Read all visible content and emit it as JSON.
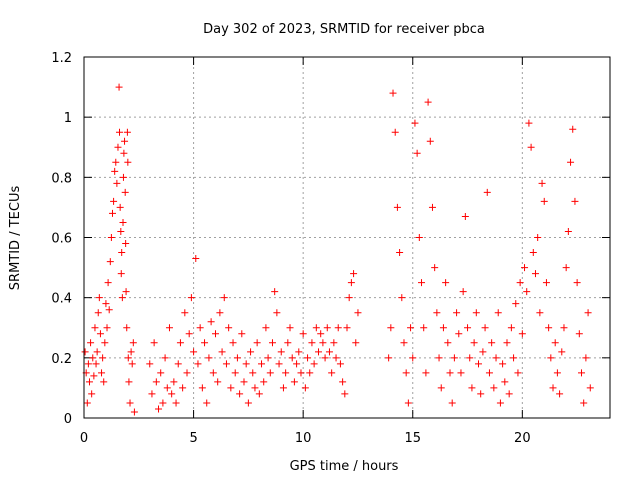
{
  "chart_data": {
    "type": "scatter",
    "title": "Day 302 of 2023, SRMTID for receiver pbca",
    "xlabel": "GPS time / hours",
    "ylabel": "SRMTID / TECUs",
    "xlim": [
      0,
      24
    ],
    "ylim": [
      0,
      1.2
    ],
    "x_ticks": [
      0,
      5,
      10,
      15,
      20
    ],
    "x_tick_labels": [
      "0",
      "5",
      "10",
      "15",
      "20"
    ],
    "y_ticks": [
      0,
      0.2,
      0.4,
      0.6,
      0.8,
      1.0,
      1.2
    ],
    "y_tick_labels": [
      "0",
      "0.2",
      "0.4",
      "0.6",
      "0.8",
      "1",
      "1.2"
    ],
    "grid": true,
    "marker": "+",
    "series": [
      {
        "name": "SRMTID",
        "color": "#ff0000",
        "x": [
          0.05,
          0.1,
          0.15,
          0.2,
          0.25,
          0.3,
          0.35,
          0.4,
          0.45,
          0.5,
          0.55,
          0.6,
          0.65,
          0.7,
          0.75,
          0.8,
          0.85,
          0.9,
          0.95,
          1.0,
          1.05,
          1.1,
          1.15,
          1.2,
          1.25,
          1.3,
          1.35,
          1.4,
          1.45,
          1.5,
          1.55,
          1.6,
          1.62,
          1.65,
          1.68,
          1.7,
          1.72,
          1.75,
          1.78,
          1.8,
          1.82,
          1.85,
          1.88,
          1.9,
          1.92,
          1.95,
          1.98,
          2.0,
          2.02,
          2.05,
          2.1,
          2.15,
          2.2,
          2.25,
          2.3,
          3.0,
          3.1,
          3.2,
          3.3,
          3.4,
          3.5,
          3.6,
          3.7,
          3.8,
          3.9,
          4.0,
          4.1,
          4.2,
          4.3,
          4.4,
          4.5,
          4.6,
          4.7,
          4.8,
          4.9,
          5.0,
          5.1,
          5.2,
          5.3,
          5.4,
          5.5,
          5.6,
          5.7,
          5.8,
          5.9,
          6.0,
          6.1,
          6.2,
          6.3,
          6.4,
          6.5,
          6.6,
          6.7,
          6.8,
          6.9,
          7.0,
          7.1,
          7.2,
          7.3,
          7.4,
          7.5,
          7.6,
          7.7,
          7.8,
          7.9,
          8.0,
          8.1,
          8.2,
          8.3,
          8.4,
          8.5,
          8.6,
          8.7,
          8.8,
          8.9,
          9.0,
          9.1,
          9.2,
          9.3,
          9.4,
          9.5,
          9.6,
          9.7,
          9.8,
          9.9,
          10.0,
          10.1,
          10.2,
          10.3,
          10.4,
          10.5,
          10.6,
          10.7,
          10.8,
          10.9,
          11.0,
          11.1,
          11.2,
          11.3,
          11.4,
          11.5,
          11.6,
          11.7,
          11.8,
          11.9,
          12.0,
          12.1,
          12.2,
          12.3,
          12.4,
          12.5,
          13.9,
          14.0,
          14.1,
          14.2,
          14.3,
          14.4,
          14.5,
          14.6,
          14.7,
          14.8,
          14.9,
          15.0,
          15.1,
          15.2,
          15.3,
          15.4,
          15.5,
          15.6,
          15.7,
          15.8,
          15.9,
          16.0,
          16.1,
          16.2,
          16.3,
          16.4,
          16.5,
          16.6,
          16.7,
          16.8,
          16.9,
          17.0,
          17.1,
          17.2,
          17.3,
          17.4,
          17.5,
          17.6,
          17.7,
          17.8,
          17.9,
          18.0,
          18.1,
          18.2,
          18.3,
          18.4,
          18.5,
          18.6,
          18.7,
          18.8,
          18.9,
          19.0,
          19.1,
          19.2,
          19.3,
          19.4,
          19.5,
          19.6,
          19.7,
          19.8,
          19.9,
          20.0,
          20.1,
          20.2,
          20.3,
          20.4,
          20.5,
          20.6,
          20.7,
          20.8,
          20.9,
          21.0,
          21.1,
          21.2,
          21.3,
          21.4,
          21.5,
          21.6,
          21.7,
          21.8,
          21.9,
          22.0,
          22.1,
          22.2,
          22.3,
          22.4,
          22.5,
          22.6,
          22.7,
          22.8,
          22.9,
          23.0,
          23.1
        ],
        "y": [
          0.22,
          0.15,
          0.05,
          0.18,
          0.12,
          0.25,
          0.08,
          0.2,
          0.14,
          0.3,
          0.18,
          0.22,
          0.35,
          0.4,
          0.28,
          0.15,
          0.2,
          0.12,
          0.25,
          0.38,
          0.3,
          0.45,
          0.36,
          0.52,
          0.6,
          0.68,
          0.72,
          0.82,
          0.85,
          0.78,
          0.9,
          1.1,
          0.95,
          0.7,
          0.62,
          0.48,
          0.55,
          0.4,
          0.65,
          0.8,
          0.88,
          0.92,
          0.75,
          0.58,
          0.42,
          0.3,
          0.95,
          0.85,
          0.2,
          0.12,
          0.05,
          0.22,
          0.18,
          0.25,
          0.02,
          0.18,
          0.08,
          0.25,
          0.12,
          0.03,
          0.15,
          0.05,
          0.2,
          0.1,
          0.3,
          0.08,
          0.12,
          0.05,
          0.18,
          0.25,
          0.1,
          0.35,
          0.15,
          0.28,
          0.4,
          0.22,
          0.53,
          0.18,
          0.3,
          0.1,
          0.25,
          0.05,
          0.2,
          0.32,
          0.15,
          0.28,
          0.12,
          0.35,
          0.22,
          0.4,
          0.18,
          0.3,
          0.1,
          0.25,
          0.15,
          0.2,
          0.08,
          0.28,
          0.12,
          0.18,
          0.05,
          0.22,
          0.15,
          0.1,
          0.25,
          0.08,
          0.18,
          0.12,
          0.3,
          0.2,
          0.15,
          0.25,
          0.42,
          0.35,
          0.18,
          0.22,
          0.1,
          0.15,
          0.25,
          0.3,
          0.2,
          0.12,
          0.18,
          0.22,
          0.15,
          0.28,
          0.1,
          0.2,
          0.15,
          0.25,
          0.18,
          0.3,
          0.22,
          0.28,
          0.25,
          0.2,
          0.3,
          0.22,
          0.15,
          0.25,
          0.2,
          0.3,
          0.18,
          0.12,
          0.08,
          0.3,
          0.4,
          0.45,
          0.48,
          0.25,
          0.35,
          0.2,
          0.3,
          1.08,
          0.95,
          0.7,
          0.55,
          0.4,
          0.25,
          0.15,
          0.05,
          0.3,
          0.2,
          0.98,
          0.88,
          0.6,
          0.45,
          0.3,
          0.15,
          1.05,
          0.92,
          0.7,
          0.5,
          0.35,
          0.2,
          0.1,
          0.3,
          0.45,
          0.25,
          0.15,
          0.05,
          0.2,
          0.35,
          0.28,
          0.15,
          0.42,
          0.67,
          0.3,
          0.2,
          0.1,
          0.25,
          0.35,
          0.18,
          0.08,
          0.22,
          0.3,
          0.75,
          0.15,
          0.25,
          0.1,
          0.2,
          0.35,
          0.05,
          0.18,
          0.12,
          0.25,
          0.08,
          0.3,
          0.2,
          0.38,
          0.15,
          0.45,
          0.28,
          0.5,
          0.42,
          0.98,
          0.9,
          0.55,
          0.48,
          0.6,
          0.35,
          0.78,
          0.72,
          0.45,
          0.3,
          0.2,
          0.1,
          0.25,
          0.15,
          0.08,
          0.22,
          0.3,
          0.5,
          0.62,
          0.85,
          0.96,
          0.72,
          0.45,
          0.28,
          0.15,
          0.05,
          0.2,
          0.35,
          0.1
        ]
      }
    ]
  }
}
